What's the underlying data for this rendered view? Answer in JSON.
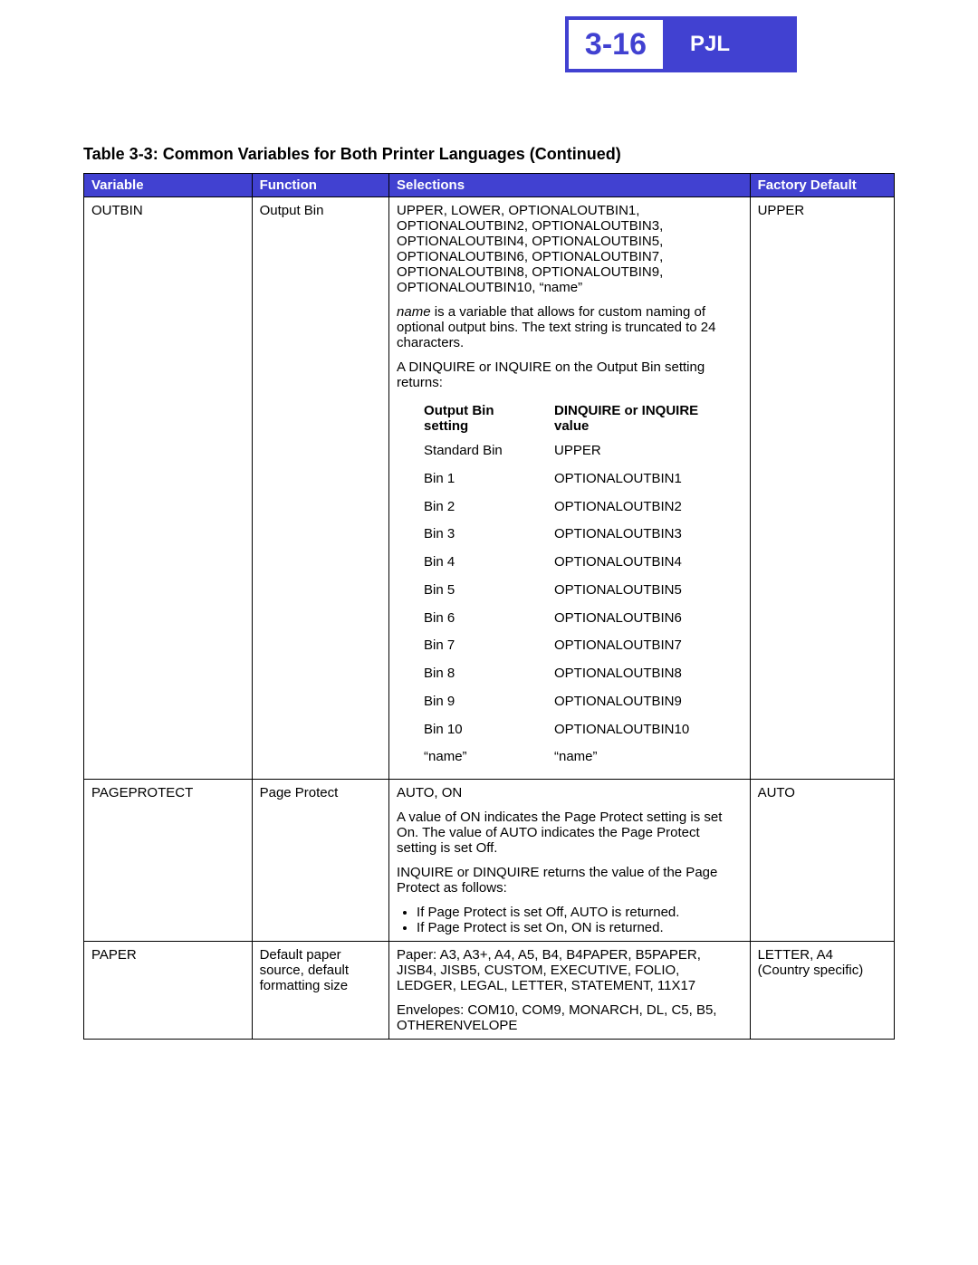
{
  "header": {
    "page_number": "3-16",
    "section": "PJL"
  },
  "caption": "Table 3-3:  Common Variables for Both Printer Languages (Continued)",
  "columns": {
    "variable": "Variable",
    "function": "Function",
    "selections": "Selections",
    "default": "Factory Default"
  },
  "row_outbin": {
    "variable": "OUTBIN",
    "function": "Output Bin",
    "default": "UPPER",
    "sel_list": "UPPER, LOWER, OPTIONALOUTBIN1, OPTIONALOUTBIN2, OPTIONALOUTBIN3, OPTIONALOUTBIN4, OPTIONALOUTBIN5, OPTIONALOUTBIN6, OPTIONALOUTBIN7, OPTIONALOUTBIN8, OPTIONALOUTBIN9, OPTIONALOUTBIN10, “name”",
    "sel_name_word": "name",
    "sel_name_rest": " is a variable that allows for custom naming of optional output bins. The text string is truncated to 24 characters.",
    "sel_dinq": "A DINQUIRE or INQUIRE on the Output Bin setting returns:",
    "inner_head_left": "Output Bin setting",
    "inner_head_right": "DINQUIRE or INQUIRE value",
    "inner_rows": [
      {
        "l": "Standard Bin",
        "r": "UPPER"
      },
      {
        "l": "Bin 1",
        "r": "OPTIONALOUTBIN1"
      },
      {
        "l": "Bin 2",
        "r": "OPTIONALOUTBIN2"
      },
      {
        "l": "Bin 3",
        "r": "OPTIONALOUTBIN3"
      },
      {
        "l": "Bin 4",
        "r": "OPTIONALOUTBIN4"
      },
      {
        "l": "Bin 5",
        "r": "OPTIONALOUTBIN5"
      },
      {
        "l": "Bin 6",
        "r": "OPTIONALOUTBIN6"
      },
      {
        "l": "Bin 7",
        "r": "OPTIONALOUTBIN7"
      },
      {
        "l": "Bin 8",
        "r": "OPTIONALOUTBIN8"
      },
      {
        "l": "Bin 9",
        "r": "OPTIONALOUTBIN9"
      },
      {
        "l": "Bin 10",
        "r": "OPTIONALOUTBIN10"
      },
      {
        "l": "“name”",
        "r": "“name”"
      }
    ]
  },
  "row_pageprotect": {
    "variable": "PAGEPROTECT",
    "function": "Page Protect",
    "default": "AUTO",
    "sel_first": "AUTO, ON",
    "sel_p2": "A value of ON indicates the Page Protect setting is set On. The value of AUTO indicates the Page Protect setting is set Off.",
    "sel_p3": "INQUIRE or DINQUIRE returns the value of the Page Protect as follows:",
    "bullet1": "If Page Protect is set Off, AUTO is returned.",
    "bullet2": "If Page Protect is set On, ON is returned."
  },
  "row_paper": {
    "variable": "PAPER",
    "function": "Default paper source, default formatting size",
    "default": "LETTER, A4 (Country specific)",
    "sel_p1": "Paper: A3, A3+, A4, A5, B4, B4PAPER, B5PAPER, JISB4, JISB5, CUSTOM, EXECUTIVE, FOLIO, LEDGER, LEGAL, LETTER, STATEMENT, 11X17",
    "sel_p2": "Envelopes: COM10, COM9, MONARCH, DL, C5, B5, OTHERENVELOPE"
  }
}
